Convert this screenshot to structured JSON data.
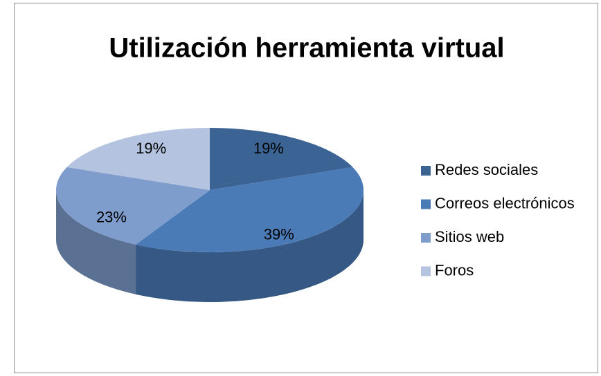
{
  "chart_data": {
    "type": "pie",
    "title": "Utilización herramienta virtual",
    "categories": [
      "Redes sociales",
      "Correos electrónicos",
      "Sitios web",
      "Foros"
    ],
    "values": [
      19,
      39,
      23,
      19
    ],
    "value_labels": [
      "19%",
      "39%",
      "23%",
      "19%"
    ],
    "colors": [
      "#3b6394",
      "#4a7bb7",
      "#7f9dcc",
      "#b4c3df"
    ],
    "legend": "right"
  }
}
